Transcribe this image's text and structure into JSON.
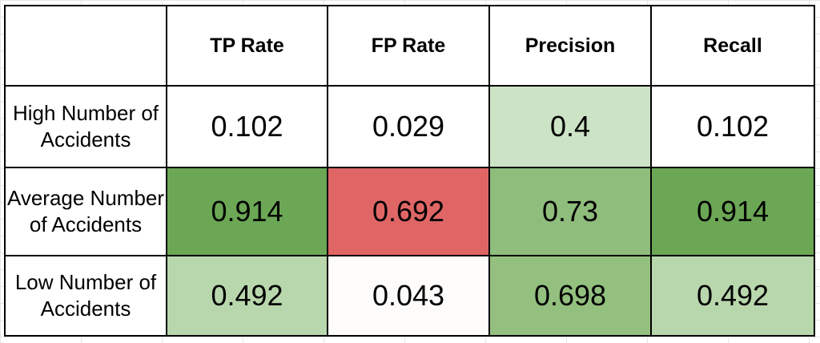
{
  "table": {
    "corner": "",
    "columns": [
      "TP Rate",
      "FP Rate",
      "Precision",
      "Recall"
    ],
    "rows": [
      {
        "label": "High Number of Accidents",
        "values": [
          "0.102",
          "0.029",
          "0.4",
          "0.102"
        ],
        "colors": [
          "#ffffff",
          "#ffffff",
          "#cde3c5",
          "#ffffff"
        ]
      },
      {
        "label": "Average Number of Accidents",
        "values": [
          "0.914",
          "0.692",
          "0.73",
          "0.914"
        ],
        "colors": [
          "#6ba755",
          "#e06666",
          "#8fbd7c",
          "#6ba755"
        ]
      },
      {
        "label": "Low Number of Accidents",
        "values": [
          "0.492",
          "0.043",
          "0.698",
          "0.492"
        ],
        "colors": [
          "#b9d7ad",
          "#fdfcfb",
          "#93c07f",
          "#b9d7ad"
        ]
      }
    ]
  }
}
